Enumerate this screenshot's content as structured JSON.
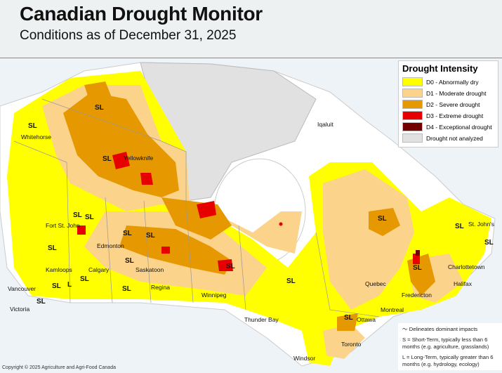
{
  "header": {
    "title": "Canadian Drought Monitor",
    "subtitle": "Conditions as of December 31, 2025"
  },
  "colors": {
    "D0": "#ffff00",
    "D1": "#fcd38a",
    "D2": "#e69800",
    "D3": "#e60000",
    "D4": "#730000",
    "not_analyzed": "#e1e1e1"
  },
  "legend": {
    "title": "Drought Intensity",
    "items": [
      {
        "label": "D0 - Abnormally dry",
        "color": "#ffff00"
      },
      {
        "label": "D1 - Moderate drought",
        "color": "#fcd38a"
      },
      {
        "label": "D2 - Severe drought",
        "color": "#e69800"
      },
      {
        "label": "D3 - Extreme drought",
        "color": "#e60000"
      },
      {
        "label": "D4 - Exceptional drought",
        "color": "#730000"
      },
      {
        "label": "Drought not analyzed",
        "color": "#e1e1e1"
      }
    ]
  },
  "impacts": {
    "line": "Delineates dominant impacts",
    "short": "S = Short-Term, typically less than 6 months (e.g. agriculture, grasslands)",
    "long": "L = Long-Term, typically greater  than 6 months (e.g. hydrology, ecology)"
  },
  "copyright": "Copyright © 2025 Agriculture and Agri-Food Canada",
  "cities": [
    "Whitehorse",
    "Yellowknife",
    "Iqaluit",
    "Fort St. John",
    "Edmonton",
    "Kamloops",
    "Calgary",
    "Saskatoon",
    "Vancouver",
    "Victoria",
    "Regina",
    "Winnipeg",
    "Thunder Bay",
    "Toronto",
    "Ottawa",
    "Montreal",
    "Quebec",
    "Fredericton",
    "Charlottetown",
    "Halifax",
    "St. John's",
    "Windsor"
  ],
  "impact_labels": [
    "SL",
    "SL",
    "SL",
    "SL",
    "SL",
    "SL",
    "SL",
    "L",
    "SL",
    "SL",
    "SL",
    "SL",
    "SL",
    "SL",
    "SL",
    "SL",
    "SL",
    "SL",
    "SL",
    "SL",
    "SL"
  ]
}
